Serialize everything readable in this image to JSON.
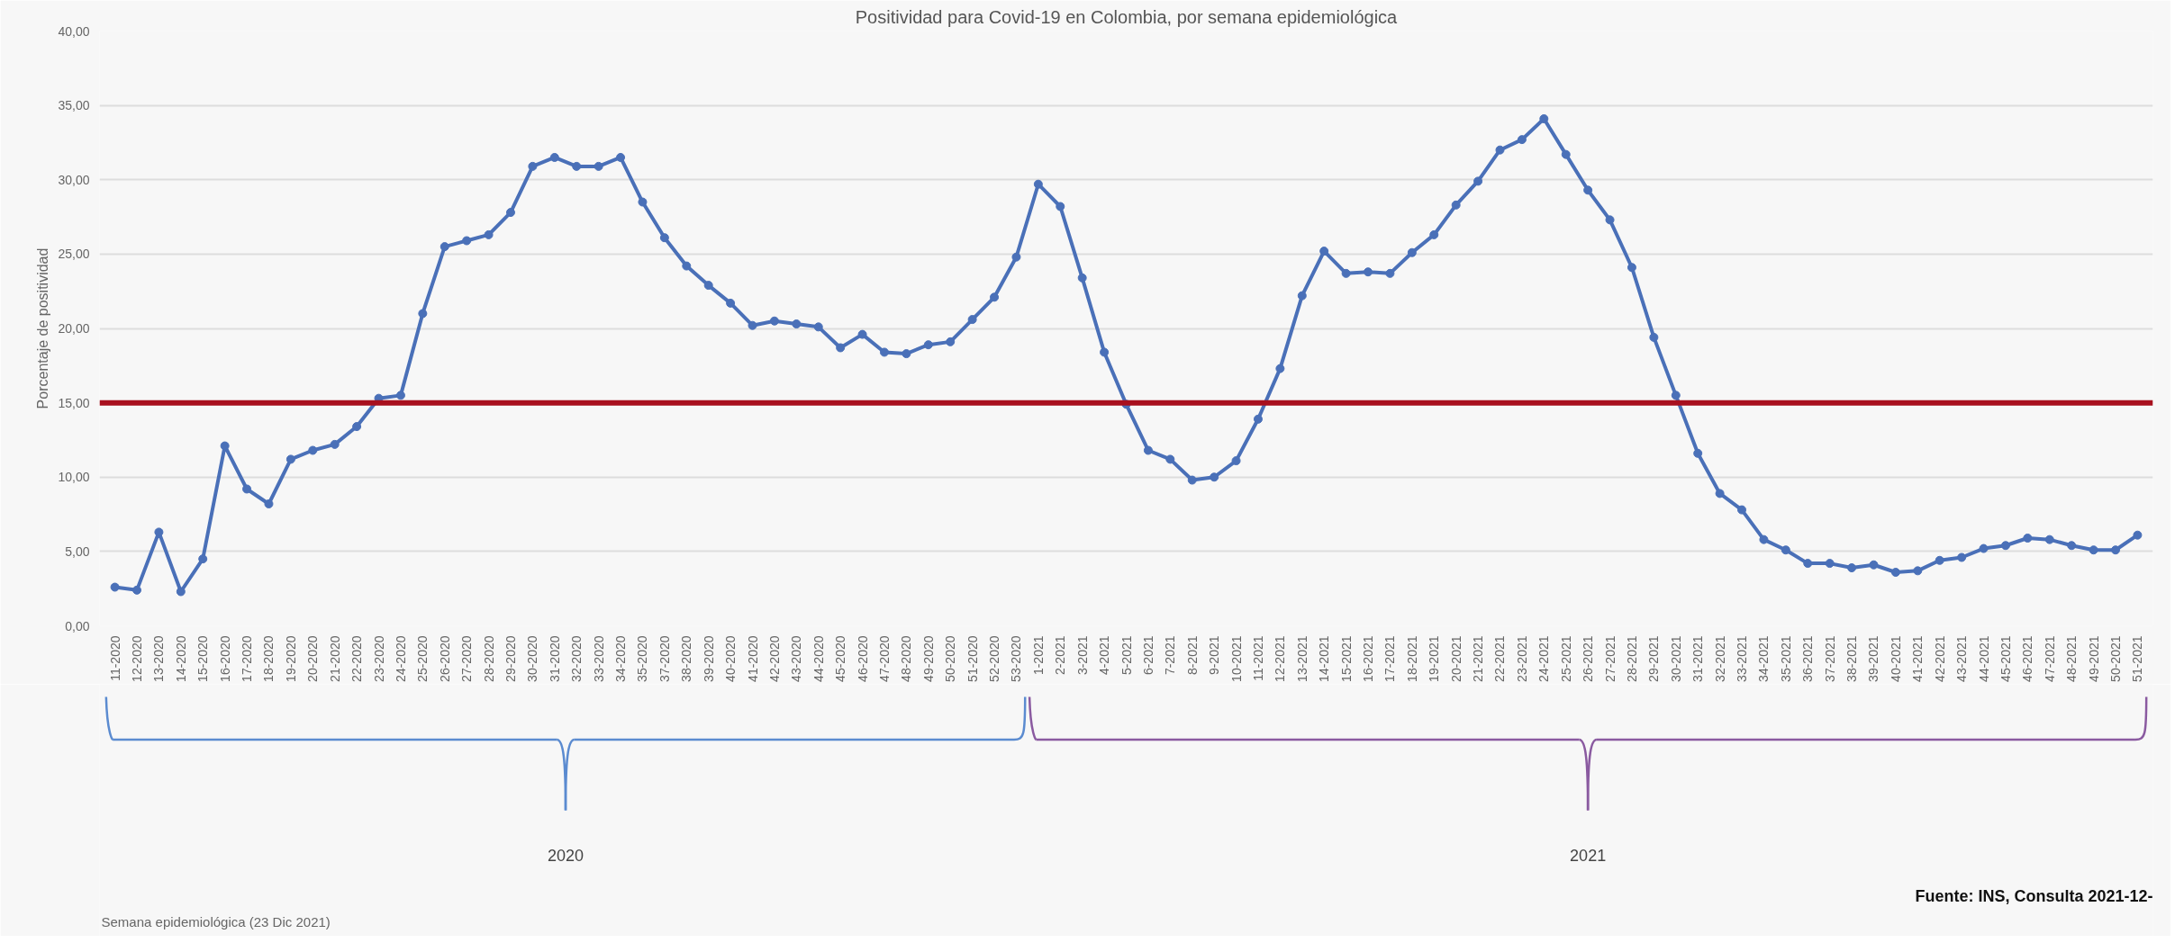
{
  "chart_data": {
    "type": "line",
    "title": "Positividad para Covid-19 en Colombia, por semana epidemiológica",
    "ylabel": "Porcentaje de positividad",
    "categories": [
      "11-2020",
      "12-2020",
      "13-2020",
      "14-2020",
      "15-2020",
      "16-2020",
      "17-2020",
      "18-2020",
      "19-2020",
      "20-2020",
      "21-2020",
      "22-2020",
      "23-2020",
      "24-2020",
      "25-2020",
      "26-2020",
      "27-2020",
      "28-2020",
      "29-2020",
      "30-2020",
      "31-2020",
      "32-2020",
      "33-2020",
      "34-2020",
      "35-2020",
      "37-2020",
      "38-2020",
      "39-2020",
      "40-2020",
      "41-2020",
      "42-2020",
      "43-2020",
      "44-2020",
      "45-2020",
      "46-2020",
      "47-2020",
      "48-2020",
      "49-2020",
      "50-2020",
      "51-2020",
      "52-2020",
      "53-2020",
      "1-2021",
      "2-2021",
      "3-2021",
      "4-2021",
      "5-2021",
      "6-2021",
      "7-2021",
      "8-2021",
      "9-2021",
      "10-2021",
      "11-2021",
      "12-2021",
      "13-2021",
      "14-2021",
      "15-2021",
      "16-2021",
      "17-2021",
      "18-2021",
      "19-2021",
      "20-2021",
      "21-2021",
      "22-2021",
      "23-2021",
      "24-2021",
      "25-2021",
      "26-2021",
      "27-2021",
      "28-2021",
      "29-2021",
      "30-2021",
      "31-2021",
      "32-2021",
      "33-2021",
      "34-2021",
      "35-2021",
      "36-2021",
      "37-2021",
      "38-2021",
      "39-2021",
      "40-2021",
      "41-2021",
      "42-2021",
      "43-2021",
      "44-2021",
      "45-2021",
      "46-2021",
      "47-2021",
      "48-2021",
      "49-2021",
      "50-2021",
      "51-2021"
    ],
    "series": [
      {
        "color": "#4a70b8",
        "values": [
          2.6,
          2.4,
          6.3,
          2.3,
          4.5,
          12.1,
          9.2,
          8.2,
          11.2,
          11.8,
          12.2,
          13.4,
          15.3,
          15.5,
          21.0,
          25.5,
          25.9,
          26.3,
          27.8,
          30.9,
          31.5,
          30.9,
          30.9,
          31.5,
          28.5,
          26.1,
          24.2,
          22.9,
          21.7,
          20.2,
          20.5,
          20.3,
          20.1,
          18.7,
          19.6,
          18.4,
          18.3,
          18.9,
          19.1,
          20.6,
          22.1,
          24.8,
          29.7,
          28.2,
          23.4,
          18.4,
          14.9,
          11.8,
          11.2,
          9.8,
          10.0,
          11.1,
          13.9,
          17.3,
          22.2,
          25.2,
          23.7,
          23.8,
          23.7,
          25.1,
          26.3,
          28.3,
          29.9,
          32.0,
          32.7,
          34.1,
          31.7,
          29.3,
          27.3,
          24.1,
          19.4,
          15.5,
          11.6,
          8.9,
          7.8,
          5.8,
          5.1,
          4.2,
          4.2,
          3.9,
          4.1,
          3.6,
          3.7,
          4.4,
          4.6,
          5.2,
          5.4,
          5.9,
          5.8,
          5.4,
          5.1,
          5.1,
          6.1
        ]
      }
    ],
    "ylim": [
      0,
      40
    ],
    "yticks": [
      {
        "value": 0,
        "label": "0,00"
      },
      {
        "value": 5,
        "label": "5,00"
      },
      {
        "value": 10,
        "label": "10,00"
      },
      {
        "value": 15,
        "label": "15,00"
      },
      {
        "value": 20,
        "label": "20,00"
      },
      {
        "value": 25,
        "label": "25,00"
      },
      {
        "value": 30,
        "label": "30,00"
      },
      {
        "value": 35,
        "label": "35,00"
      },
      {
        "value": 40,
        "label": "40,00"
      }
    ],
    "grid": "y",
    "marker": "circle",
    "line_style": "solid",
    "ref_lines": [
      {
        "axis": "y",
        "value": 15,
        "color": "#a8101e"
      }
    ],
    "annotations": [
      "2020",
      "2021",
      "Fuente: INS, Consulta 2021-12-",
      "Semana epidemiológica (23 Dic 2021)"
    ]
  }
}
